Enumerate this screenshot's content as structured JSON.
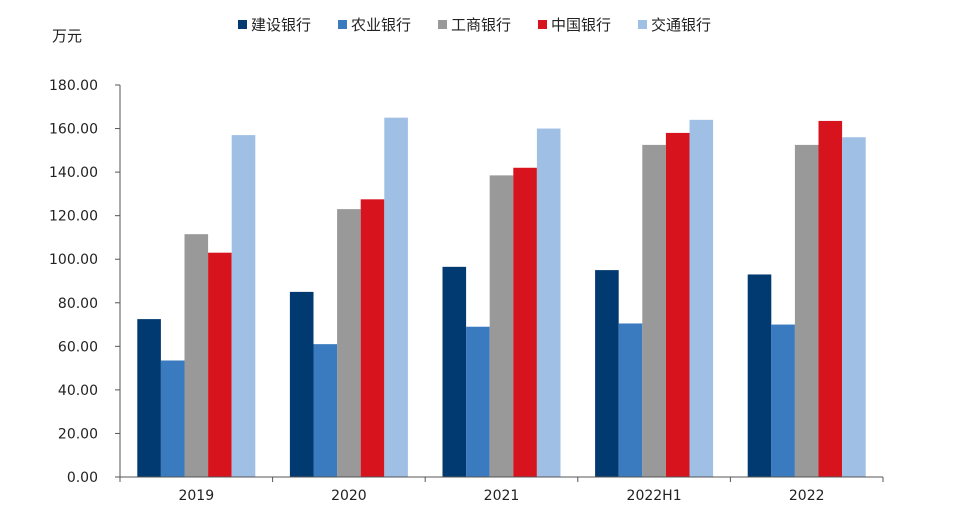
{
  "chart_data": {
    "type": "bar",
    "title": "",
    "xlabel": "",
    "ylabel": "万元",
    "ylim": [
      0,
      180
    ],
    "y_ticks": [
      "0.00",
      "20.00",
      "40.00",
      "60.00",
      "80.00",
      "100.00",
      "120.00",
      "140.00",
      "160.00",
      "180.00"
    ],
    "y_tick_values": [
      0,
      20,
      40,
      60,
      80,
      100,
      120,
      140,
      160,
      180
    ],
    "grid": false,
    "legend_position": "top",
    "categories": [
      "2019",
      "2020",
      "2021",
      "2022H1",
      "2022"
    ],
    "series": [
      {
        "name": "建设银行",
        "color": "#003a70",
        "values": [
          72.5,
          85,
          96.5,
          95,
          93
        ]
      },
      {
        "name": "农业银行",
        "color": "#3a7abf",
        "values": [
          53.5,
          61,
          69,
          70.5,
          70
        ]
      },
      {
        "name": "工商银行",
        "color": "#999999",
        "values": [
          111.5,
          123,
          138.5,
          152.5,
          152.5
        ]
      },
      {
        "name": "中国银行",
        "color": "#d7141e",
        "values": [
          103,
          127.5,
          142,
          158,
          163.5
        ]
      },
      {
        "name": "交通银行",
        "color": "#9fc0e4",
        "values": [
          157,
          165,
          160,
          164,
          156
        ]
      }
    ]
  }
}
